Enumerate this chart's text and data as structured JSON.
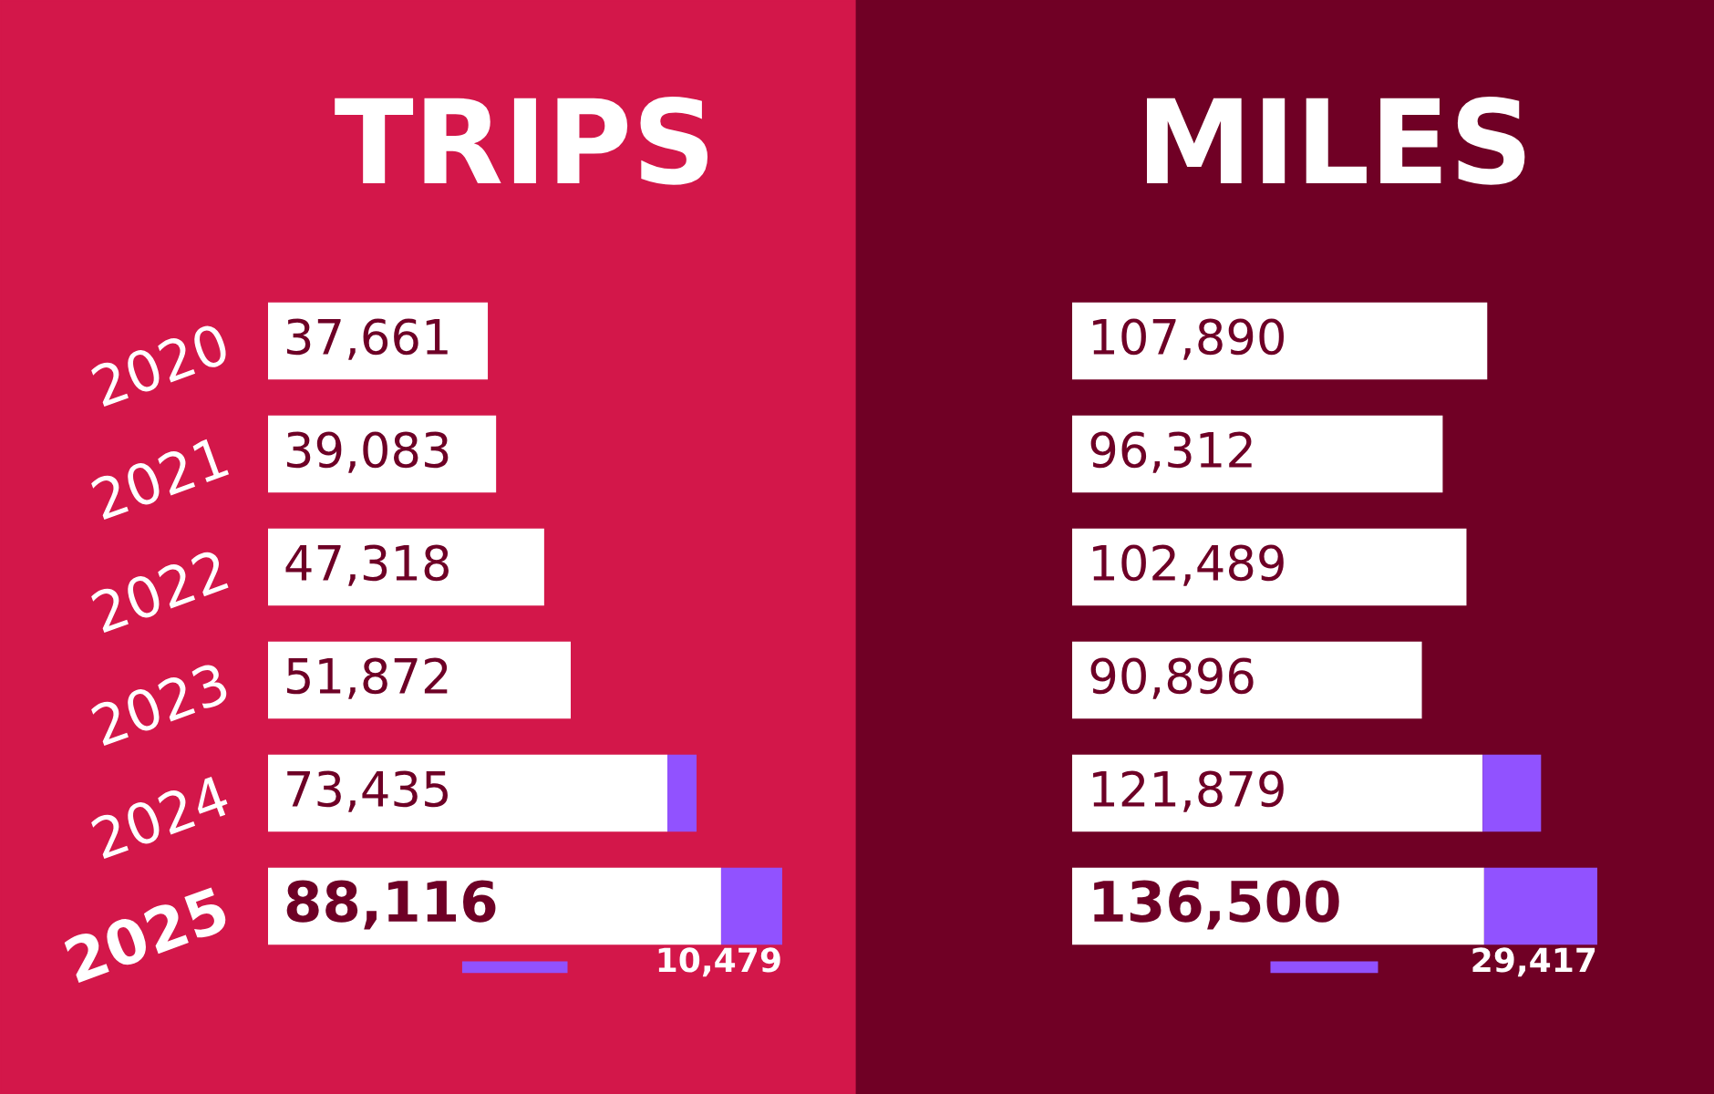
{
  "chart_data": [
    {
      "type": "bar",
      "title": "TRIPS",
      "orientation": "horizontal",
      "stacked": true,
      "categories": [
        "2020",
        "2021",
        "2022",
        "2023",
        "2024",
        "2025"
      ],
      "tick_labels": "y",
      "grid": false,
      "legend": false,
      "series": [
        {
          "color": "#ffffff",
          "values": [
            37661,
            39083,
            47318,
            51872,
            68435,
            77637
          ]
        },
        {
          "color": "#9152ff",
          "values": [
            null,
            null,
            null,
            null,
            5000,
            10479
          ],
          "value_labels": [
            null,
            null,
            null,
            null,
            null,
            "10,479"
          ]
        }
      ],
      "totals": [
        "37,661",
        "39,083",
        "47,318",
        "51,872",
        "73,435",
        "88,116"
      ]
    },
    {
      "type": "bar",
      "title": "MILES",
      "orientation": "horizontal",
      "stacked": true,
      "categories": [
        "2020",
        "2021",
        "2022",
        "2023",
        "2024",
        "2025"
      ],
      "tick_labels": false,
      "grid": false,
      "legend": false,
      "series": [
        {
          "color": "#ffffff",
          "values": [
            107890,
            96312,
            102489,
            90896,
            106679,
            107083
          ]
        },
        {
          "color": "#9152ff",
          "values": [
            null,
            null,
            null,
            null,
            15200,
            29417
          ],
          "value_labels": [
            null,
            null,
            null,
            null,
            null,
            "29,417"
          ]
        }
      ],
      "totals": [
        "107,890",
        "96,312",
        "102,489",
        "90,896",
        "121,879",
        "136,500"
      ]
    }
  ]
}
